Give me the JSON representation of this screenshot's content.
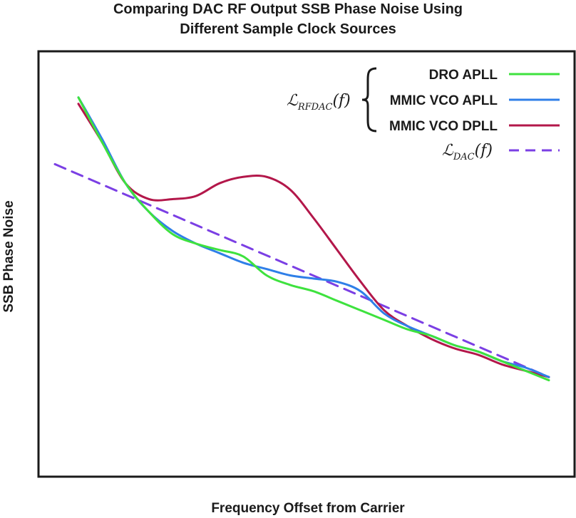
{
  "chart_data": {
    "type": "line",
    "title_line1": "Comparing DAC RF Output SSB Phase Noise Using",
    "title_line2": "Different Sample Clock Sources",
    "xlabel": "Frequency Offset from Carrier",
    "ylabel": "SSB Phase Noise",
    "xlim": [
      0,
      100
    ],
    "ylim": [
      0,
      100
    ],
    "grid": false,
    "legend_position": "top-right",
    "legend_group_label": "RFDAC",
    "legend_group_label_prefix": "ℒ",
    "legend_group_label_suffix": "(f)",
    "legend_reference_label": "DAC",
    "series": [
      {
        "name": "DRO APLL",
        "color": "#3ee23e",
        "dashed": false,
        "x": [
          0,
          5,
          10,
          15,
          20,
          25,
          30,
          35,
          40,
          45,
          50,
          55,
          60,
          65,
          70,
          75,
          80,
          85,
          90,
          95,
          100
        ],
        "y": [
          94,
          80,
          67,
          58,
          51,
          48,
          46,
          44,
          38,
          35,
          33,
          30,
          27,
          24,
          21,
          19,
          16,
          14,
          11,
          8,
          5
        ]
      },
      {
        "name": "MMIC VCO APLL",
        "color": "#2f7fe8",
        "dashed": false,
        "x": [
          0,
          5,
          10,
          15,
          20,
          25,
          30,
          35,
          40,
          45,
          50,
          55,
          60,
          65,
          70,
          75,
          80,
          85,
          90,
          95,
          100
        ],
        "y": [
          94,
          81,
          67,
          58,
          52,
          48,
          45,
          42,
          40,
          38,
          37,
          36,
          33,
          26,
          22,
          19,
          16,
          14,
          11,
          9,
          6
        ]
      },
      {
        "name": "MMIC VCO DPLL",
        "color": "#b3174a",
        "dashed": false,
        "x": [
          0,
          5,
          10,
          15,
          20,
          25,
          30,
          35,
          40,
          45,
          50,
          55,
          60,
          65,
          70,
          75,
          80,
          85,
          90,
          95,
          100
        ],
        "y": [
          92,
          80,
          67,
          62,
          62,
          63,
          67,
          69,
          69,
          65,
          56,
          46,
          36,
          27,
          22,
          18,
          15,
          13,
          10,
          8,
          6
        ]
      },
      {
        "name": "DAC",
        "color": "#7b3fe4",
        "dashed": true,
        "x": [
          -5,
          100
        ],
        "y": [
          73,
          6
        ]
      }
    ]
  }
}
